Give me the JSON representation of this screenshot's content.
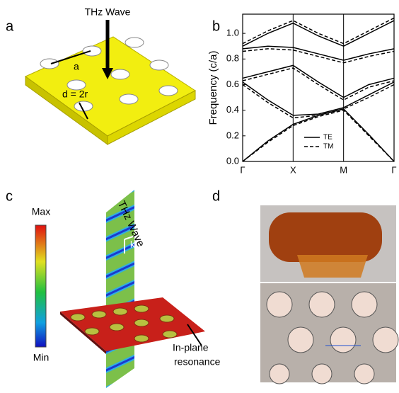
{
  "panel_labels": [
    "a",
    "b",
    "c",
    "d"
  ],
  "panel_a": {
    "arrow_label": "THz Wave",
    "lattice_label": "a",
    "diameter_label": "d = 2r"
  },
  "chart_data": {
    "type": "line",
    "ylabel": "Frequency (c/a)",
    "x": [
      0,
      0.5,
      1,
      1.5,
      2,
      2.5,
      3
    ],
    "xlim": [
      0,
      3
    ],
    "xticks": [
      {
        "value": 0,
        "label": "Γ"
      },
      {
        "value": 1,
        "label": "X"
      },
      {
        "value": 2,
        "label": "M"
      },
      {
        "value": 3,
        "label": "Γ"
      }
    ],
    "ylim": [
      0,
      1.15
    ],
    "yticks": [
      {
        "value": 0,
        "label": "0.0"
      },
      {
        "value": 0.2,
        "label": "0.2"
      },
      {
        "value": 0.4,
        "label": "0.4"
      },
      {
        "value": 0.6,
        "label": "0.6"
      },
      {
        "value": 0.8,
        "label": "0.8"
      },
      {
        "value": 1,
        "label": "1.0"
      }
    ],
    "xgrid": true,
    "series": [
      {
        "name": "TE",
        "color": "#000000",
        "linestyle": "solid",
        "bands": [
          [
            0,
            0.16,
            0.29,
            0.36,
            0.41,
            0.21,
            0
          ],
          [
            0.62,
            0.48,
            0.36,
            0.37,
            0.42,
            0.52,
            0.62
          ],
          [
            0.65,
            0.7,
            0.75,
            0.62,
            0.5,
            0.6,
            0.65
          ],
          [
            0.88,
            0.9,
            0.89,
            0.84,
            0.79,
            0.84,
            0.88
          ],
          [
            0.9,
            1.0,
            1.08,
            0.98,
            0.9,
            1.0,
            1.1
          ]
        ]
      },
      {
        "name": "TM",
        "color": "#000000",
        "linestyle": "dashed",
        "bands": [
          [
            0,
            0.15,
            0.28,
            0.35,
            0.4,
            0.2,
            0
          ],
          [
            0.6,
            0.46,
            0.34,
            0.36,
            0.41,
            0.5,
            0.6
          ],
          [
            0.63,
            0.68,
            0.73,
            0.6,
            0.48,
            0.58,
            0.63
          ],
          [
            0.86,
            0.88,
            0.87,
            0.82,
            0.77,
            0.82,
            0.86
          ],
          [
            0.92,
            1.02,
            1.1,
            1.0,
            0.92,
            1.02,
            1.12
          ]
        ]
      }
    ],
    "legend": "lower center"
  },
  "panel_c": {
    "colorbar_max": "Max",
    "colorbar_min": "Min",
    "wave_label": "THz Wave",
    "k_label": "k",
    "annotation": [
      "In-plane",
      "resonance"
    ]
  }
}
